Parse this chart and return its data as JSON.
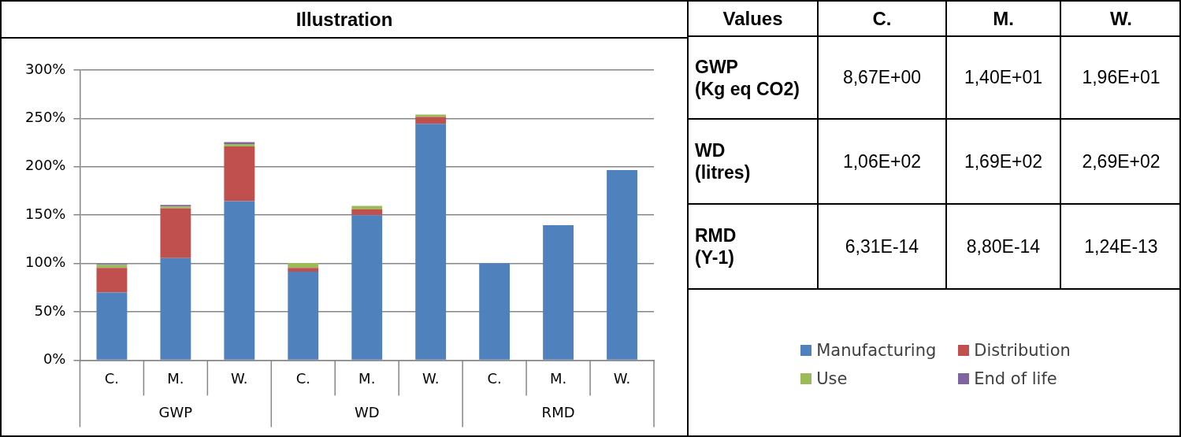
{
  "chart_data": [
    {
      "type": "bar",
      "title": "Illustration",
      "stacked": true,
      "categories": [
        "C.",
        "M.",
        "W.",
        "C.",
        "M.",
        "W.",
        "C.",
        "M.",
        "W."
      ],
      "annotations": [
        "GWP",
        "WD",
        "RMD"
      ],
      "series": [
        {
          "name": "Manufacturing",
          "color": "#4f81bd",
          "values": [
            70,
            105.5,
            164.5,
            91.5,
            150,
            244.5,
            100,
            139.5,
            196.5
          ]
        },
        {
          "name": "Distribution",
          "color": "#c0504d",
          "values": [
            25.5,
            51.5,
            56.5,
            4,
            6,
            7,
            0,
            0,
            0
          ]
        },
        {
          "name": "Use",
          "color": "#9bbb59",
          "values": [
            3,
            2,
            2.5,
            5,
            3.5,
            2.5,
            0,
            0,
            0
          ]
        },
        {
          "name": "End of life",
          "color": "#8064a2",
          "values": [
            1,
            1.5,
            2,
            0,
            0,
            0,
            0,
            0,
            0
          ]
        }
      ],
      "ylim": [
        0,
        300
      ],
      "yticks": [
        {
          "value": 0,
          "label": "0%"
        },
        {
          "value": 50,
          "label": "50%"
        },
        {
          "value": 100,
          "label": "100%"
        },
        {
          "value": 150,
          "label": "150%"
        },
        {
          "value": 200,
          "label": "200%"
        },
        {
          "value": 250,
          "label": "250%"
        },
        {
          "value": 300,
          "label": "300%"
        }
      ],
      "grid": "y",
      "legend": "right"
    },
    {
      "type": "other",
      "title": "Values",
      "categories": [
        "C.",
        "M.",
        "W."
      ],
      "y_categories": [
        "GWP\n(Kg eq CO2)",
        "WD\n(litres)",
        "RMD\n(Y-1)"
      ],
      "cell_labels": [
        [
          "8,67E+00",
          "1,40E+01",
          "1,96E+01"
        ],
        [
          "1,06E+02",
          "1,69E+02",
          "2,69E+02"
        ],
        [
          "6,31E-14",
          "8,80E-14",
          "1,24E-13"
        ]
      ]
    }
  ]
}
